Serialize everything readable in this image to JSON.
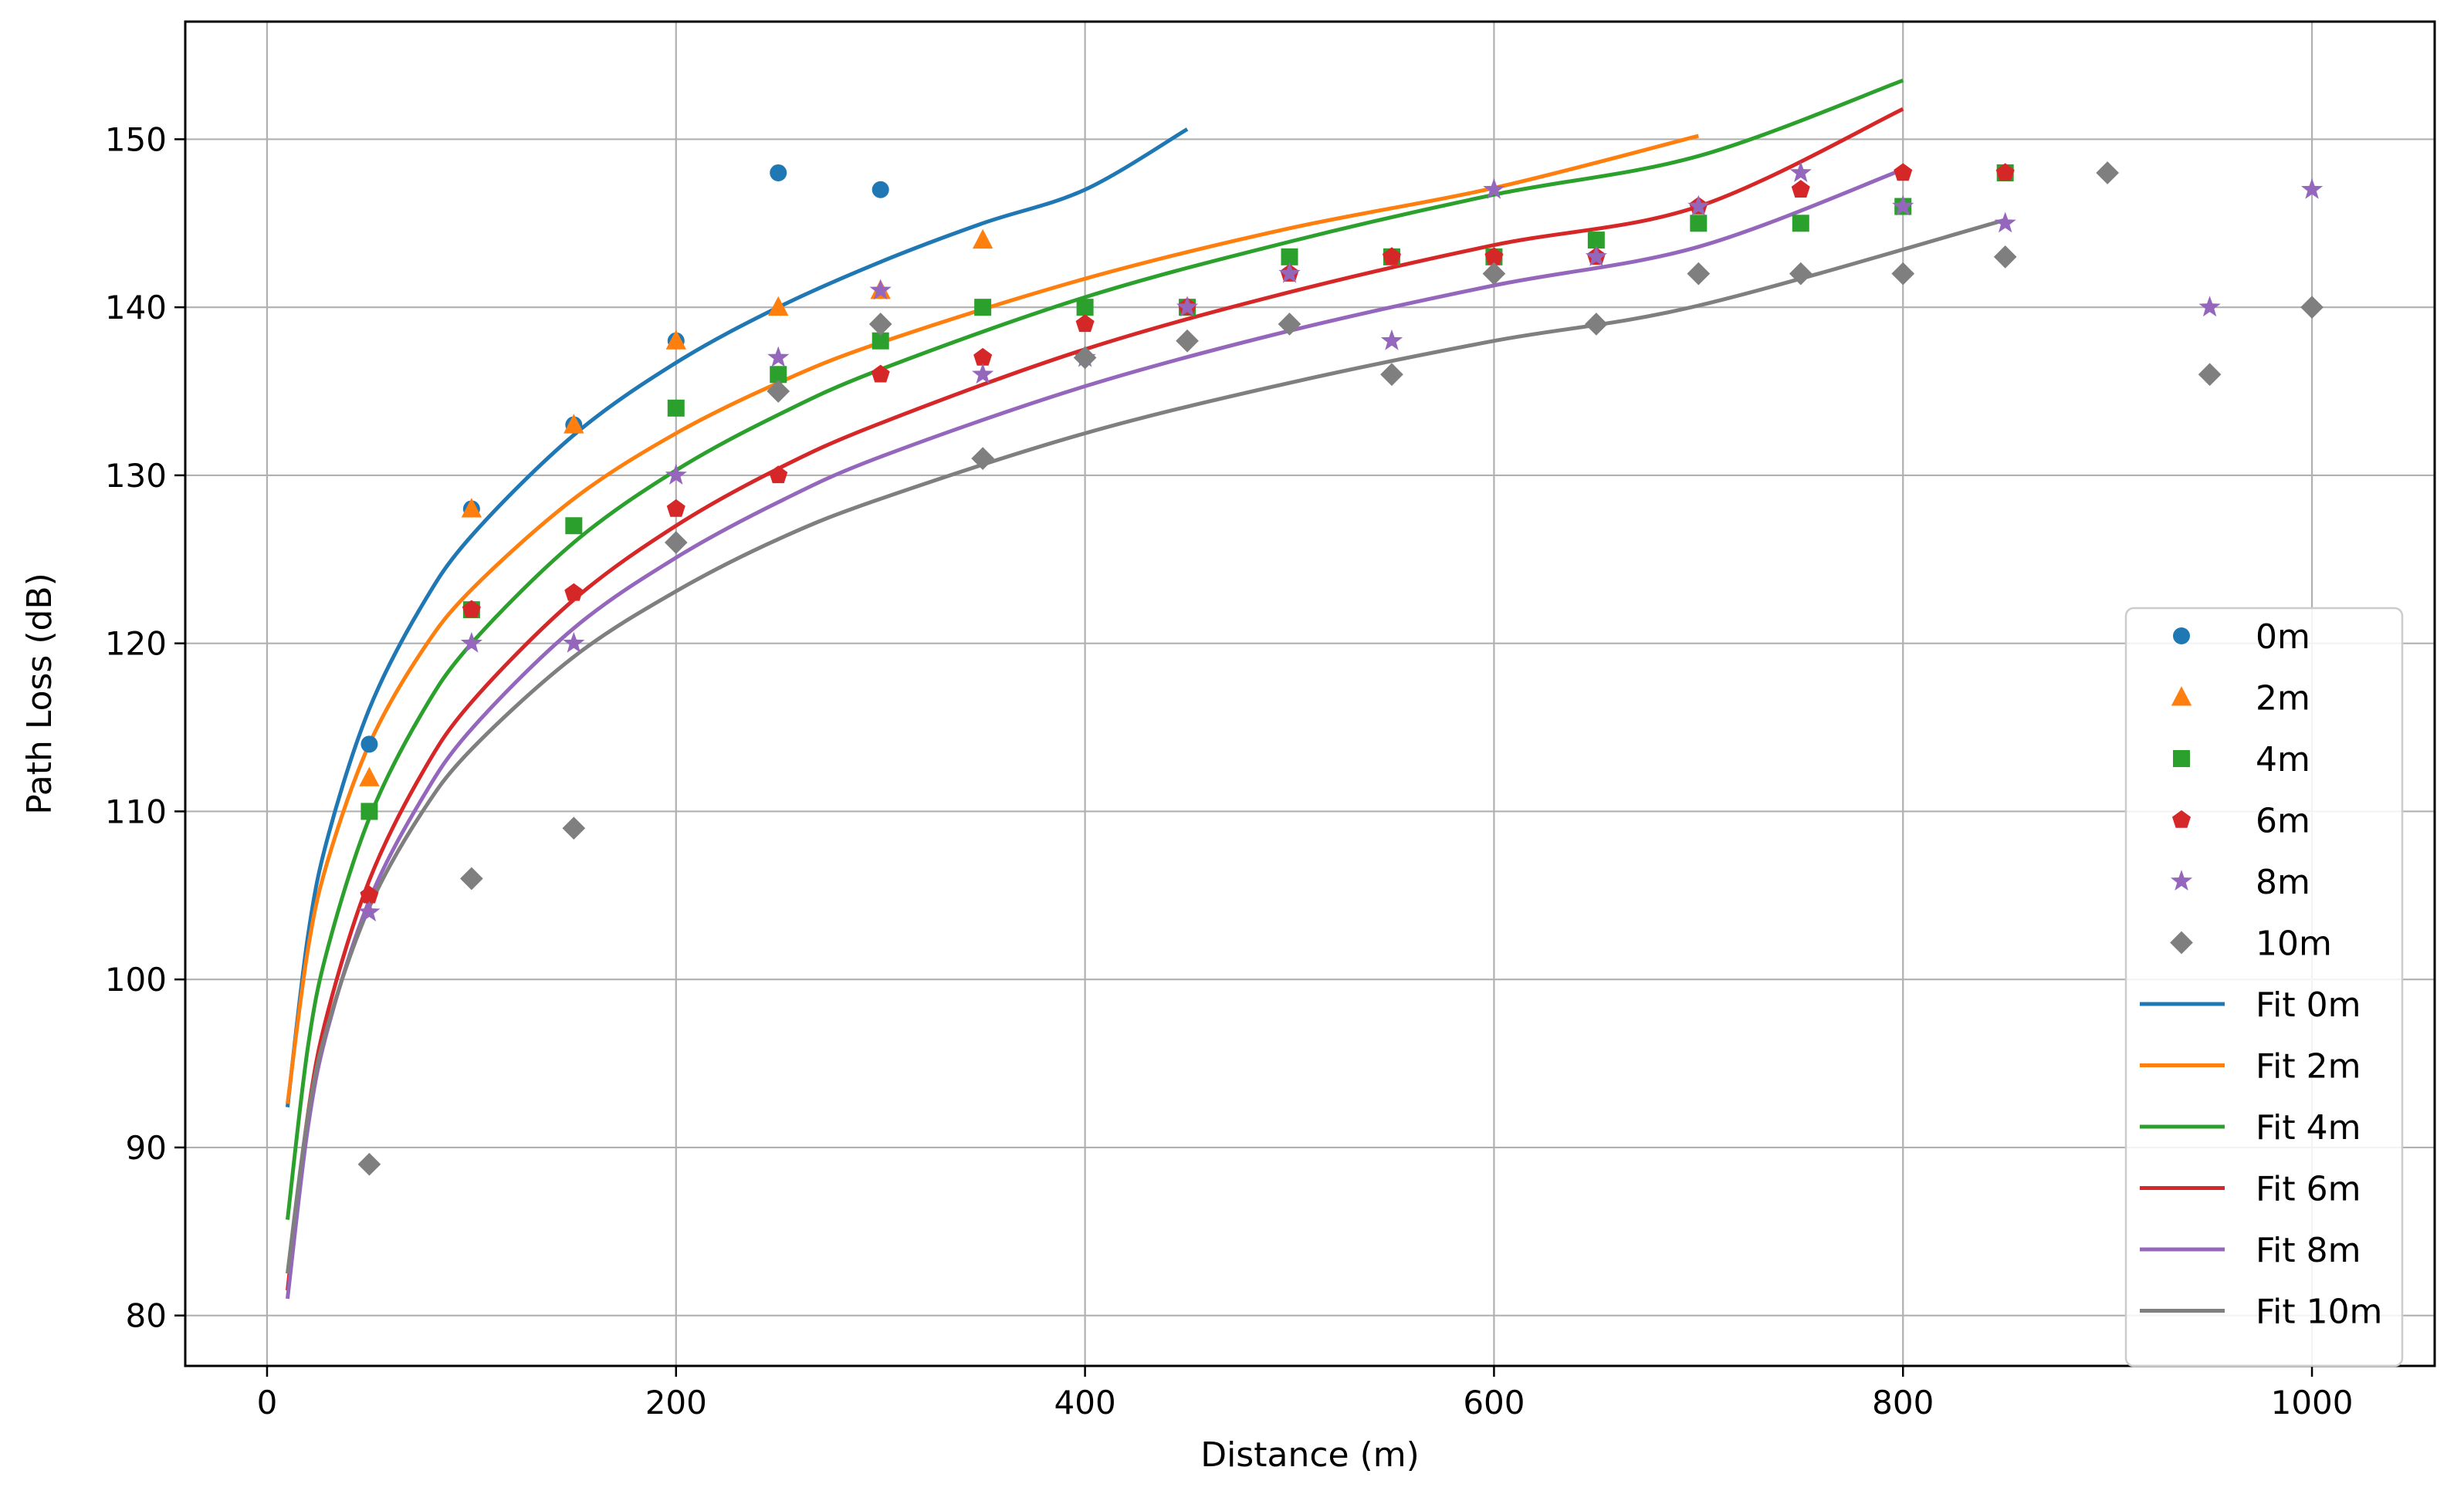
{
  "chart_data": {
    "type": "scatter",
    "xlabel": "Distance (m)",
    "ylabel": "Path Loss (dB)",
    "xlim": [
      -40,
      1060
    ],
    "ylim": [
      77,
      157
    ],
    "xticks": [
      0,
      200,
      400,
      600,
      800,
      1000
    ],
    "yticks": [
      80,
      90,
      100,
      110,
      120,
      130,
      140,
      150
    ],
    "grid": true,
    "legend_position": "lower-right",
    "scatter_series": [
      {
        "name": "0m",
        "marker": "circle",
        "color": "#1f77b4",
        "points": [
          [
            50,
            114
          ],
          [
            100,
            128
          ],
          [
            150,
            133
          ],
          [
            200,
            138
          ],
          [
            250,
            148
          ],
          [
            300,
            147
          ]
        ]
      },
      {
        "name": "2m",
        "marker": "triangle",
        "color": "#ff7f0e",
        "points": [
          [
            50,
            112
          ],
          [
            100,
            128
          ],
          [
            150,
            133
          ],
          [
            200,
            138
          ],
          [
            250,
            140
          ],
          [
            300,
            141
          ],
          [
            350,
            144
          ]
        ]
      },
      {
        "name": "4m",
        "marker": "square",
        "color": "#2ca02c",
        "points": [
          [
            50,
            110
          ],
          [
            100,
            122
          ],
          [
            150,
            127
          ],
          [
            200,
            134
          ],
          [
            250,
            136
          ],
          [
            300,
            138
          ],
          [
            350,
            140
          ],
          [
            400,
            140
          ],
          [
            450,
            140
          ],
          [
            500,
            143
          ],
          [
            550,
            143
          ],
          [
            600,
            143
          ],
          [
            650,
            144
          ],
          [
            700,
            145
          ],
          [
            750,
            145
          ],
          [
            800,
            146
          ],
          [
            850,
            148
          ]
        ]
      },
      {
        "name": "6m",
        "marker": "pentagon",
        "color": "#d62728",
        "points": [
          [
            50,
            105
          ],
          [
            100,
            122
          ],
          [
            150,
            123
          ],
          [
            200,
            128
          ],
          [
            250,
            130
          ],
          [
            300,
            136
          ],
          [
            350,
            137
          ],
          [
            400,
            139
          ],
          [
            450,
            140
          ],
          [
            500,
            142
          ],
          [
            550,
            143
          ],
          [
            600,
            143
          ],
          [
            650,
            143
          ],
          [
            700,
            146
          ],
          [
            750,
            147
          ],
          [
            800,
            148
          ],
          [
            850,
            148
          ]
        ]
      },
      {
        "name": "8m",
        "marker": "star",
        "color": "#9467bd",
        "points": [
          [
            50,
            104
          ],
          [
            100,
            120
          ],
          [
            150,
            120
          ],
          [
            200,
            130
          ],
          [
            250,
            137
          ],
          [
            300,
            141
          ],
          [
            350,
            136
          ],
          [
            400,
            137
          ],
          [
            450,
            140
          ],
          [
            500,
            142
          ],
          [
            550,
            138
          ],
          [
            600,
            147
          ],
          [
            650,
            143
          ],
          [
            700,
            146
          ],
          [
            750,
            148
          ],
          [
            800,
            146
          ],
          [
            850,
            145
          ],
          [
            950,
            140
          ],
          [
            1000,
            147
          ]
        ]
      },
      {
        "name": "10m",
        "marker": "diamond",
        "color": "#7f7f7f",
        "points": [
          [
            50,
            89
          ],
          [
            100,
            106
          ],
          [
            150,
            109
          ],
          [
            200,
            126
          ],
          [
            250,
            135
          ],
          [
            300,
            139
          ],
          [
            350,
            131
          ],
          [
            400,
            137
          ],
          [
            450,
            138
          ],
          [
            500,
            139
          ],
          [
            550,
            136
          ],
          [
            600,
            142
          ],
          [
            650,
            139
          ],
          [
            700,
            142
          ],
          [
            750,
            142
          ],
          [
            800,
            142
          ],
          [
            850,
            143
          ],
          [
            900,
            148
          ],
          [
            950,
            136
          ],
          [
            1000,
            140
          ]
        ]
      }
    ],
    "fit_series": [
      {
        "name": "Fit 0m",
        "color": "#1f77b4",
        "points": [
          [
            10,
            92.4
          ],
          [
            20,
            102.6
          ],
          [
            30,
            108.6
          ],
          [
            50,
            116.1
          ],
          [
            75,
            122.1
          ],
          [
            100,
            126.4
          ],
          [
            150,
            132.4
          ],
          [
            200,
            136.7
          ],
          [
            250,
            140.0
          ],
          [
            300,
            142.7
          ],
          [
            350,
            145.0
          ],
          [
            400,
            147.0
          ],
          [
            450,
            150.6
          ]
        ]
      },
      {
        "name": "Fit 2m",
        "color": "#ff7f0e",
        "points": [
          [
            10,
            92.6
          ],
          [
            20,
            101.8
          ],
          [
            30,
            107.2
          ],
          [
            50,
            114.0
          ],
          [
            75,
            119.4
          ],
          [
            100,
            123.2
          ],
          [
            150,
            128.6
          ],
          [
            200,
            132.5
          ],
          [
            250,
            135.5
          ],
          [
            300,
            137.9
          ],
          [
            400,
            141.7
          ],
          [
            500,
            144.7
          ],
          [
            600,
            147.1
          ],
          [
            700,
            150.2
          ]
        ]
      },
      {
        "name": "Fit 4m",
        "color": "#2ca02c",
        "points": [
          [
            10,
            85.7
          ],
          [
            20,
            96.0
          ],
          [
            30,
            102.0
          ],
          [
            50,
            109.6
          ],
          [
            75,
            115.7
          ],
          [
            100,
            120.0
          ],
          [
            150,
            126.0
          ],
          [
            200,
            130.3
          ],
          [
            250,
            133.6
          ],
          [
            300,
            136.3
          ],
          [
            400,
            140.6
          ],
          [
            500,
            143.9
          ],
          [
            600,
            146.7
          ],
          [
            700,
            149.0
          ],
          [
            800,
            153.5
          ]
        ]
      },
      {
        "name": "Fit 6m",
        "color": "#d62728",
        "points": [
          [
            10,
            81.5
          ],
          [
            20,
            92.0
          ],
          [
            30,
            98.2
          ],
          [
            50,
            105.9
          ],
          [
            75,
            112.1
          ],
          [
            100,
            116.5
          ],
          [
            150,
            122.6
          ],
          [
            200,
            127.0
          ],
          [
            250,
            130.4
          ],
          [
            300,
            133.1
          ],
          [
            400,
            137.5
          ],
          [
            500,
            140.9
          ],
          [
            600,
            143.7
          ],
          [
            700,
            146.0
          ],
          [
            800,
            151.8
          ]
        ]
      },
      {
        "name": "Fit 8m",
        "color": "#9467bd",
        "points": [
          [
            10,
            81.0
          ],
          [
            20,
            91.2
          ],
          [
            30,
            97.2
          ],
          [
            50,
            104.7
          ],
          [
            75,
            110.6
          ],
          [
            100,
            114.9
          ],
          [
            150,
            120.9
          ],
          [
            200,
            125.1
          ],
          [
            250,
            128.4
          ],
          [
            300,
            131.1
          ],
          [
            400,
            135.3
          ],
          [
            500,
            138.6
          ],
          [
            600,
            141.3
          ],
          [
            700,
            143.6
          ],
          [
            800,
            148.2
          ]
        ]
      },
      {
        "name": "Fit 10m",
        "color": "#7f7f7f",
        "points": [
          [
            10,
            82.5
          ],
          [
            20,
            91.9
          ],
          [
            30,
            97.4
          ],
          [
            50,
            104.3
          ],
          [
            75,
            109.8
          ],
          [
            100,
            113.7
          ],
          [
            150,
            119.2
          ],
          [
            200,
            123.1
          ],
          [
            250,
            126.2
          ],
          [
            300,
            128.6
          ],
          [
            400,
            132.5
          ],
          [
            500,
            135.5
          ],
          [
            600,
            138.0
          ],
          [
            700,
            140.1
          ],
          [
            850,
            145.2
          ]
        ]
      }
    ]
  }
}
